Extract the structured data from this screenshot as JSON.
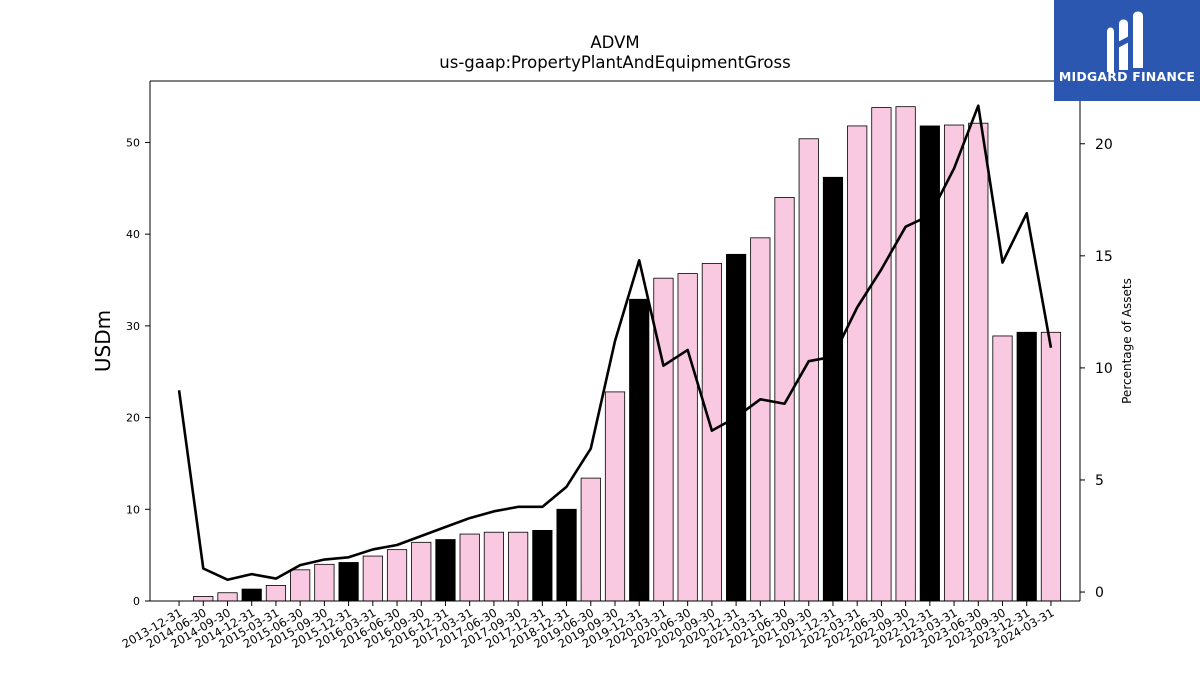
{
  "chart_data": {
    "type": "bar",
    "title": "ADVM",
    "subtitle": "us-gaap:PropertyPlantAndEquipmentGross",
    "ylabel": "USDm",
    "y2label": "Percentage of Assets",
    "ylim": [
      0,
      56.7
    ],
    "y2lim": [
      -0.4,
      22.8
    ],
    "yticks": [
      0,
      10,
      20,
      30,
      40,
      50
    ],
    "y2ticks": [
      0,
      5,
      10,
      15,
      20
    ],
    "categories": [
      "2013-12-31",
      "2014-06-30",
      "2014-09-30",
      "2014-12-31",
      "2015-03-31",
      "2015-06-30",
      "2015-09-30",
      "2015-12-31",
      "2016-03-31",
      "2016-06-30",
      "2016-09-30",
      "2016-12-31",
      "2017-03-31",
      "2017-06-30",
      "2017-09-30",
      "2017-12-31",
      "2018-12-31",
      "2019-06-30",
      "2019-09-30",
      "2019-12-31",
      "2020-03-31",
      "2020-06-30",
      "2020-09-30",
      "2020-12-31",
      "2021-03-31",
      "2021-06-30",
      "2021-09-30",
      "2021-12-31",
      "2022-03-31",
      "2022-06-30",
      "2022-09-30",
      "2022-12-31",
      "2023-03-31",
      "2023-06-30",
      "2023-09-30",
      "2023-12-31",
      "2024-03-31"
    ],
    "series": [
      {
        "type": "bar",
        "axis": "left",
        "values": [
          0,
          0.5,
          0.9,
          1.3,
          1.7,
          3.4,
          4.0,
          4.2,
          4.9,
          5.6,
          6.4,
          6.7,
          7.3,
          7.5,
          7.5,
          7.7,
          10.0,
          13.4,
          22.8,
          32.9,
          35.2,
          35.7,
          36.8,
          37.8,
          39.6,
          44.0,
          50.4,
          46.2,
          51.8,
          53.8,
          53.9,
          51.8,
          51.9,
          52.1,
          28.9,
          29.3,
          29.3
        ],
        "colors": [
          "#f9c9e1",
          "#f9c9e1",
          "#f9c9e1",
          "#000000",
          "#f9c9e1",
          "#f9c9e1",
          "#f9c9e1",
          "#000000",
          "#f9c9e1",
          "#f9c9e1",
          "#f9c9e1",
          "#000000",
          "#f9c9e1",
          "#f9c9e1",
          "#f9c9e1",
          "#000000",
          "#000000",
          "#f9c9e1",
          "#f9c9e1",
          "#000000",
          "#f9c9e1",
          "#f9c9e1",
          "#f9c9e1",
          "#000000",
          "#f9c9e1",
          "#f9c9e1",
          "#f9c9e1",
          "#000000",
          "#f9c9e1",
          "#f9c9e1",
          "#f9c9e1",
          "#000000",
          "#f9c9e1",
          "#f9c9e1",
          "#f9c9e1",
          "#000000",
          "#f9c9e1"
        ]
      },
      {
        "type": "line",
        "axis": "right",
        "color": "#000000",
        "values": [
          9.0,
          1.05,
          0.55,
          0.8,
          0.6,
          1.2,
          1.45,
          1.55,
          1.9,
          2.1,
          2.5,
          2.9,
          3.3,
          3.6,
          3.8,
          3.8,
          4.7,
          6.4,
          11.2,
          14.8,
          10.1,
          10.8,
          7.2,
          7.8,
          8.6,
          8.4,
          10.3,
          10.5,
          12.7,
          14.4,
          16.3,
          16.8,
          18.9,
          21.7,
          14.7,
          16.9,
          10.9
        ]
      }
    ],
    "grid": false
  },
  "logo": {
    "text": "MIDGARD FINANCE",
    "background": "#2b57b0"
  }
}
